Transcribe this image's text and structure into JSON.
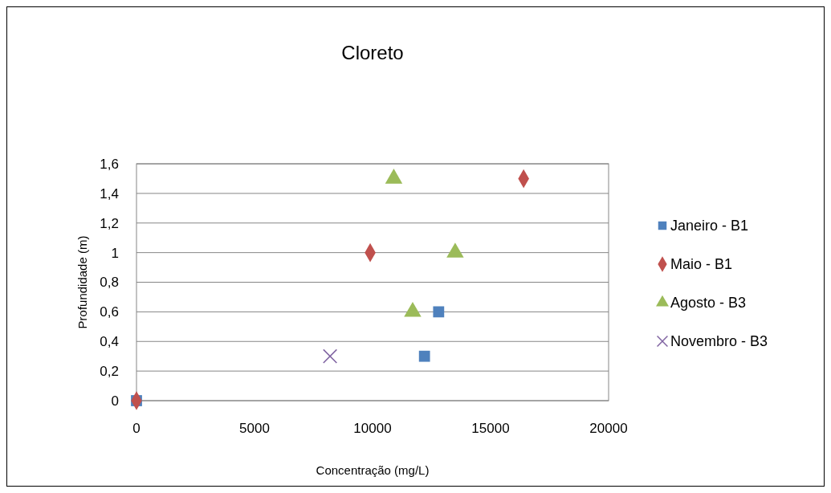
{
  "chart_data": {
    "type": "scatter",
    "title": "Cloreto",
    "xlabel": "Concentração (mg/L)",
    "ylabel": "Profundidade (m)",
    "xlim": [
      0,
      20000
    ],
    "xticks": [
      0,
      5000,
      10000,
      15000,
      20000
    ],
    "ylim": [
      0,
      1.6
    ],
    "yticks": [
      0,
      {
        "value": 0.2,
        "label": "0,2"
      },
      {
        "value": 0.4,
        "label": "0,4"
      },
      {
        "value": 0.6,
        "label": "0,6"
      },
      {
        "value": 0.8,
        "label": "0,8"
      },
      1,
      {
        "value": 1.2,
        "label": "1,2"
      },
      {
        "value": 1.4,
        "label": "1,4"
      },
      {
        "value": 1.6,
        "label": "1,6"
      }
    ],
    "grid": "y",
    "legend": "right",
    "series": [
      {
        "name": "Janeiro - B1",
        "color": "#4f81bd",
        "marker": "square",
        "x": [
          0,
          12200,
          12800
        ],
        "values": [
          0,
          0.3,
          0.6
        ]
      },
      {
        "name": "Maio - B1",
        "color": "#c0504d",
        "marker": "diamond",
        "x": [
          0,
          9900,
          16400
        ],
        "values": [
          0,
          1,
          1.5
        ]
      },
      {
        "name": "Agosto - B3",
        "color": "#9bbb59",
        "marker": "triangle",
        "x": [
          11700,
          13500,
          10900
        ],
        "values": [
          0.6,
          1,
          1.5
        ]
      },
      {
        "name": "Novembro - B3",
        "color": "#8064a2",
        "marker": "cross",
        "x": [
          8200
        ],
        "values": [
          0.3
        ]
      }
    ]
  }
}
